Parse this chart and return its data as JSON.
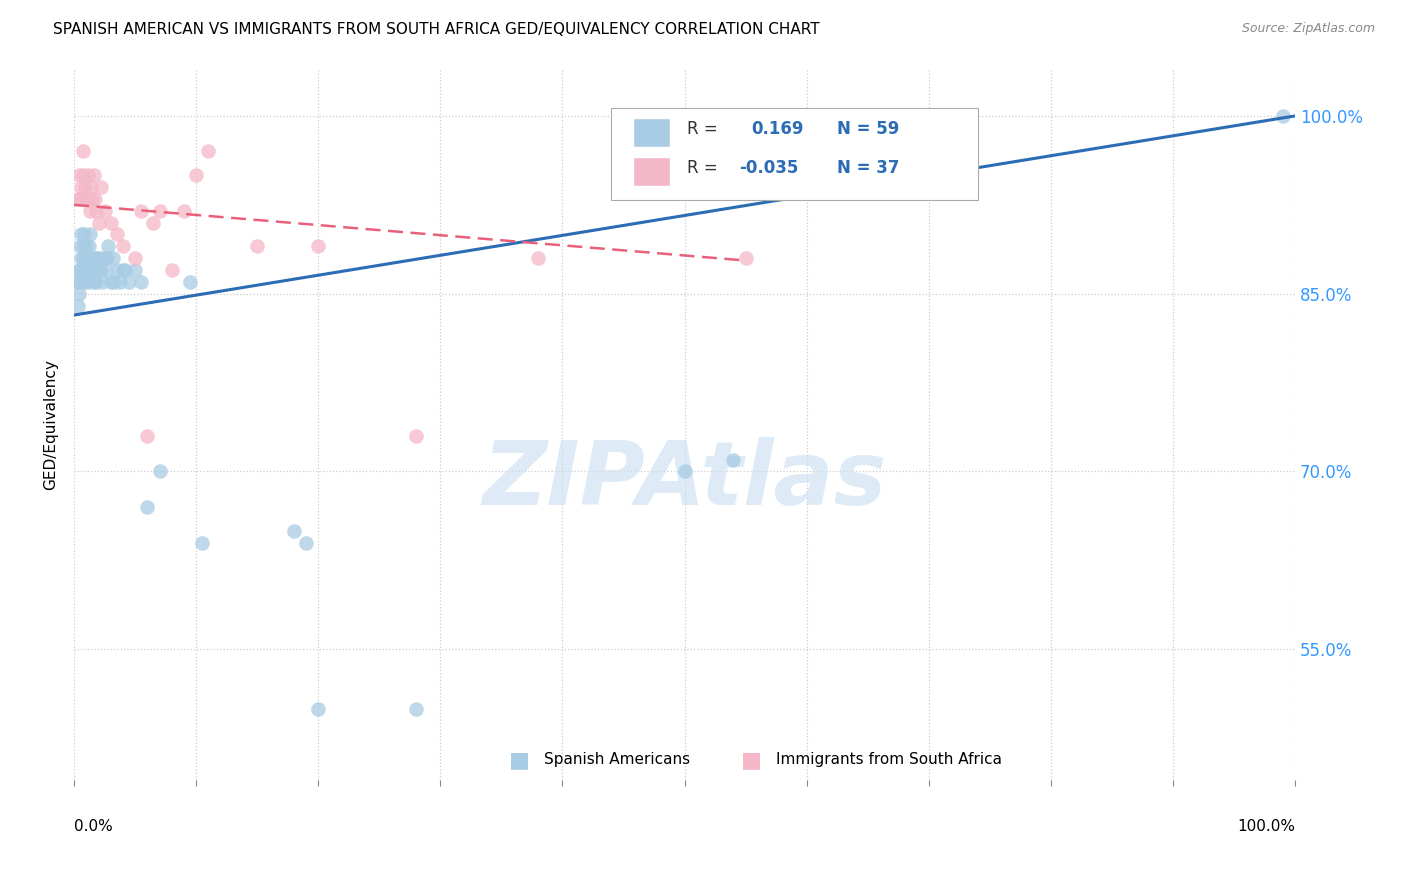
{
  "title": "SPANISH AMERICAN VS IMMIGRANTS FROM SOUTH AFRICA GED/EQUIVALENCY CORRELATION CHART",
  "source": "Source: ZipAtlas.com",
  "ylabel": "GED/Equivalency",
  "yticks": [
    "55.0%",
    "70.0%",
    "85.0%",
    "100.0%"
  ],
  "ytick_vals": [
    0.55,
    0.7,
    0.85,
    1.0
  ],
  "xlim": [
    0.0,
    1.0
  ],
  "ylim": [
    0.44,
    1.04
  ],
  "blue_color": "#a8cce4",
  "pink_color": "#f4b8c8",
  "blue_line_color": "#2b6cb5",
  "pink_line_color": "#e8607a",
  "blue_line_x0": 0.0,
  "blue_line_y0": 0.832,
  "blue_line_x1": 1.0,
  "blue_line_y1": 1.0,
  "pink_line_x0": 0.0,
  "pink_line_y0": 0.925,
  "pink_line_x1": 0.55,
  "pink_line_y1": 0.878,
  "blue_scatter_x": [
    0.003,
    0.003,
    0.004,
    0.004,
    0.005,
    0.005,
    0.005,
    0.006,
    0.006,
    0.007,
    0.007,
    0.008,
    0.008,
    0.009,
    0.009,
    0.01,
    0.01,
    0.011,
    0.011,
    0.012,
    0.012,
    0.013,
    0.013,
    0.014,
    0.015,
    0.015,
    0.016,
    0.017,
    0.018,
    0.019,
    0.02,
    0.021,
    0.022,
    0.023,
    0.025,
    0.026,
    0.027,
    0.028,
    0.03,
    0.032,
    0.033,
    0.035,
    0.038,
    0.04,
    0.042,
    0.045,
    0.05,
    0.055,
    0.06,
    0.07,
    0.095,
    0.105,
    0.18,
    0.19,
    0.2,
    0.28,
    0.5,
    0.54,
    0.99
  ],
  "blue_scatter_y": [
    0.84,
    0.86,
    0.85,
    0.87,
    0.86,
    0.87,
    0.89,
    0.88,
    0.9,
    0.88,
    0.89,
    0.87,
    0.9,
    0.86,
    0.88,
    0.87,
    0.89,
    0.86,
    0.88,
    0.87,
    0.89,
    0.88,
    0.9,
    0.87,
    0.88,
    0.87,
    0.86,
    0.88,
    0.86,
    0.88,
    0.87,
    0.88,
    0.87,
    0.86,
    0.88,
    0.87,
    0.88,
    0.89,
    0.86,
    0.88,
    0.86,
    0.87,
    0.86,
    0.87,
    0.87,
    0.86,
    0.87,
    0.86,
    0.67,
    0.7,
    0.86,
    0.64,
    0.65,
    0.64,
    0.5,
    0.5,
    0.7,
    0.71,
    1.0
  ],
  "pink_scatter_x": [
    0.003,
    0.004,
    0.005,
    0.006,
    0.007,
    0.007,
    0.008,
    0.009,
    0.01,
    0.011,
    0.012,
    0.013,
    0.014,
    0.015,
    0.016,
    0.017,
    0.018,
    0.02,
    0.022,
    0.025,
    0.03,
    0.035,
    0.04,
    0.05,
    0.055,
    0.06,
    0.065,
    0.07,
    0.08,
    0.09,
    0.1,
    0.11,
    0.15,
    0.2,
    0.28,
    0.38,
    0.55
  ],
  "pink_scatter_y": [
    0.93,
    0.95,
    0.93,
    0.94,
    0.95,
    0.97,
    0.93,
    0.94,
    0.93,
    0.95,
    0.93,
    0.92,
    0.94,
    0.93,
    0.95,
    0.93,
    0.92,
    0.91,
    0.94,
    0.92,
    0.91,
    0.9,
    0.89,
    0.88,
    0.92,
    0.73,
    0.91,
    0.92,
    0.87,
    0.92,
    0.95,
    0.97,
    0.89,
    0.89,
    0.73,
    0.88,
    0.88
  ],
  "watermark_text": "ZIPAtlas",
  "watermark_color": "#c8dff0",
  "legend_entries": [
    {
      "color": "#a8cce4",
      "text_r": "R =",
      "text_val": "  0.169",
      "text_n": "N = 59"
    },
    {
      "color": "#f4b8c8",
      "text_r": "R =",
      "text_val": "-0.035",
      "text_n": "N = 37"
    }
  ],
  "bottom_legend": [
    {
      "color": "#a8cce4",
      "label": "Spanish Americans"
    },
    {
      "color": "#f4b8c8",
      "label": "Immigrants from South Africa"
    }
  ]
}
